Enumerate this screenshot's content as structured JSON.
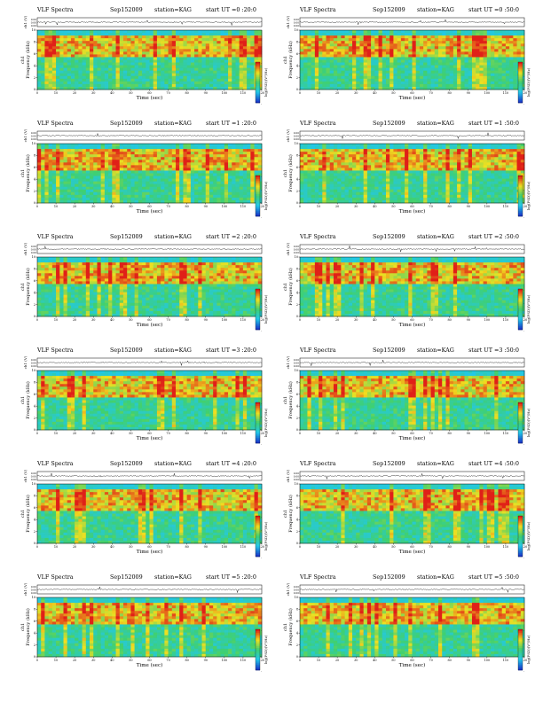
{
  "page": {
    "panel_title": "VLF Spectra",
    "date": "Sep152009",
    "station": "station=KAG",
    "xlabel": "Time (sec)",
    "ylabel": "Frequency (kHz)",
    "ch_label": "ch1",
    "amp_label": "ch1 (V)",
    "cbar_label": "log(PSD)(V²/Hz)",
    "amp_ticks": [
      "0.00",
      "0.00",
      "0.00"
    ],
    "freq_ticks": [
      "0",
      "2",
      "4",
      "6",
      "8",
      "10"
    ],
    "time_ticks": [
      "0",
      "10",
      "20",
      "30",
      "40",
      "50",
      "60",
      "70",
      "80",
      "90",
      "100",
      "110",
      "120"
    ],
    "cbar_ticks": [
      "-",
      "-",
      "-",
      "-"
    ]
  },
  "colors": {
    "low": "#1838c8",
    "mid_low": "#22c8e8",
    "mid": "#40d070",
    "mid_high": "#f0e020",
    "high": "#e02018",
    "background": "#ffffff"
  },
  "chart_data": [
    {
      "type": "heatmap",
      "title": "VLF Spectra",
      "start": "start UT =0 :20:0",
      "xlabel": "Time (sec)",
      "ylabel": "Frequency (kHz)",
      "xlim": [
        0,
        120
      ],
      "ylim": [
        0,
        10
      ],
      "colorbar": "log(PSD)(V²/Hz)"
    },
    {
      "type": "heatmap",
      "title": "VLF Spectra",
      "start": "start UT =0 :50:0",
      "xlabel": "Time (sec)",
      "ylabel": "Frequency (kHz)",
      "xlim": [
        0,
        120
      ],
      "ylim": [
        0,
        10
      ],
      "colorbar": "log(PSD)(V²/Hz)"
    },
    {
      "type": "heatmap",
      "title": "VLF Spectra",
      "start": "start UT =1 :20:0",
      "xlabel": "Time (sec)",
      "ylabel": "Frequency (kHz)",
      "xlim": [
        0,
        120
      ],
      "ylim": [
        0,
        10
      ],
      "colorbar": "log(PSD)(V²/Hz)"
    },
    {
      "type": "heatmap",
      "title": "VLF Spectra",
      "start": "start UT =1 :50:0",
      "xlabel": "Time (sec)",
      "ylabel": "Frequency (kHz)",
      "xlim": [
        0,
        120
      ],
      "ylim": [
        0,
        10
      ],
      "colorbar": "log(PSD)(V²/Hz)"
    },
    {
      "type": "heatmap",
      "title": "VLF Spectra",
      "start": "start UT =2 :20:0",
      "xlabel": "Time (sec)",
      "ylabel": "Frequency (kHz)",
      "xlim": [
        0,
        120
      ],
      "ylim": [
        0,
        10
      ],
      "colorbar": "log(PSD)(V²/Hz)"
    },
    {
      "type": "heatmap",
      "title": "VLF Spectra",
      "start": "start UT =2 :50:0",
      "xlabel": "Time (sec)",
      "ylabel": "Frequency (kHz)",
      "xlim": [
        0,
        120
      ],
      "ylim": [
        0,
        10
      ],
      "colorbar": "log(PSD)(V²/Hz)"
    },
    {
      "type": "heatmap",
      "title": "VLF Spectra",
      "start": "start UT =3 :20:0",
      "xlabel": "Time (sec)",
      "ylabel": "Frequency (kHz)",
      "xlim": [
        0,
        120
      ],
      "ylim": [
        0,
        10
      ],
      "colorbar": "log(PSD)(V²/Hz)"
    },
    {
      "type": "heatmap",
      "title": "VLF Spectra",
      "start": "start UT =3 :50:0",
      "xlabel": "Time (sec)",
      "ylabel": "Frequency (kHz)",
      "xlim": [
        0,
        120
      ],
      "ylim": [
        0,
        10
      ],
      "colorbar": "log(PSD)(V²/Hz)"
    },
    {
      "type": "heatmap",
      "title": "VLF Spectra",
      "start": "start UT =4 :20:0",
      "xlabel": "Time (sec)",
      "ylabel": "Frequency (kHz)",
      "xlim": [
        0,
        120
      ],
      "ylim": [
        0,
        10
      ],
      "colorbar": "log(PSD)(V²/Hz)"
    },
    {
      "type": "heatmap",
      "title": "VLF Spectra",
      "start": "start UT =4 :50:0",
      "xlabel": "Time (sec)",
      "ylabel": "Frequency (kHz)",
      "xlim": [
        0,
        120
      ],
      "ylim": [
        0,
        10
      ],
      "colorbar": "log(PSD)(V²/Hz)"
    },
    {
      "type": "heatmap",
      "title": "VLF Spectra",
      "start": "start UT =5 :20:0",
      "xlabel": "Time (sec)",
      "ylabel": "Frequency (kHz)",
      "xlim": [
        0,
        120
      ],
      "ylim": [
        0,
        10
      ],
      "colorbar": "log(PSD)(V²/Hz)"
    },
    {
      "type": "heatmap",
      "title": "VLF Spectra",
      "start": "start UT =5 :50:0",
      "xlabel": "Time (sec)",
      "ylabel": "Frequency (kHz)",
      "xlim": [
        0,
        120
      ],
      "ylim": [
        0,
        10
      ],
      "colorbar": "log(PSD)(V²/Hz)"
    }
  ]
}
